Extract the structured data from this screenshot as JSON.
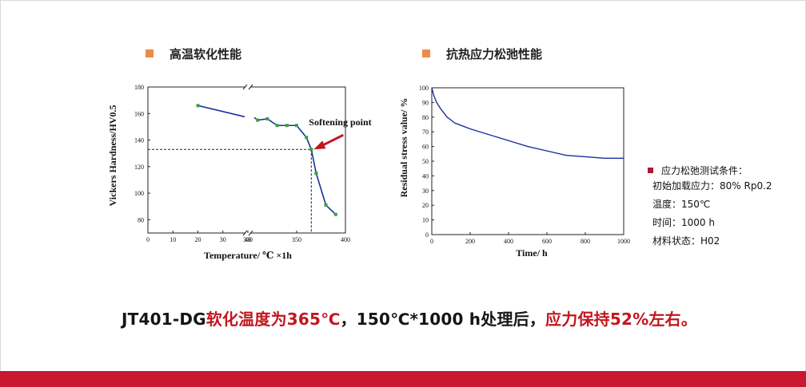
{
  "sections": {
    "left_title": "高温软化性能",
    "right_title": "抗热应力松弛性能"
  },
  "chart_data": [
    {
      "type": "line",
      "xlabel": "Temperature/ ℃ ×1h",
      "ylabel": "Vickers Hardness/HV0.5",
      "x_ticks_left": [
        "0",
        "10",
        "20",
        "30",
        "40",
        "300"
      ],
      "x_ticks_right": [
        "300",
        "350",
        "400"
      ],
      "y_ticks": [
        "80",
        "100",
        "120",
        "140",
        "160",
        "180"
      ],
      "ylim": [
        70,
        180
      ],
      "broken_axis": true,
      "series": [
        {
          "x": [
            20,
            300,
            310,
            320,
            330,
            340,
            350,
            360,
            365,
            370,
            380,
            390
          ],
          "y": [
            166,
            157,
            155,
            156,
            151,
            151,
            151,
            142,
            133,
            115,
            91,
            84
          ]
        }
      ],
      "annotation": {
        "text": "Softening point",
        "x": 365,
        "y": 133
      },
      "colors": {
        "line": "#1a2fa0",
        "marker": "#3ca03c",
        "arrow": "#c0181e"
      }
    },
    {
      "type": "line",
      "xlabel": "Time/ h",
      "ylabel": "Residual stress value/ %",
      "xlim": [
        0,
        1000
      ],
      "ylim": [
        0,
        100
      ],
      "x_ticks": [
        "0",
        "200",
        "400",
        "600",
        "800",
        "1000"
      ],
      "y_ticks": [
        "0",
        "10",
        "20",
        "30",
        "40",
        "50",
        "60",
        "70",
        "80",
        "90",
        "100"
      ],
      "series": [
        {
          "x": [
            0,
            10,
            25,
            50,
            80,
            120,
            160,
            200,
            300,
            400,
            500,
            600,
            700,
            800,
            900,
            1000
          ],
          "y": [
            100,
            95,
            90,
            85,
            80,
            76,
            74,
            72,
            68,
            64,
            60,
            57,
            54,
            53,
            52,
            52
          ]
        }
      ],
      "colors": {
        "line": "#1a2fa0"
      }
    }
  ],
  "conditions": {
    "title": "应力松弛测试条件：",
    "lines": [
      "初始加载应力：80% Rp0.2",
      "温度：150℃",
      "时间：1000 h",
      "材料状态：H02"
    ]
  },
  "summary": {
    "part1": "JT401-DG",
    "part2": "软化温度为365℃",
    "part3": "，150℃*1000 h处理后，",
    "part4": "应力保持52%左右。"
  }
}
